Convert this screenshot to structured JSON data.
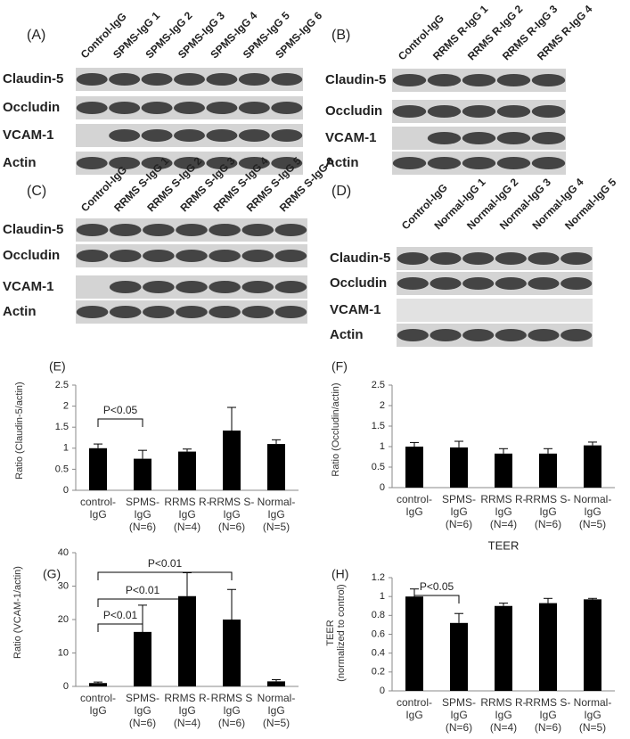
{
  "blots": [
    {
      "panel": "(A)",
      "lanes": [
        "Control-IgG",
        "SPMS-IgG 1",
        "SPMS-IgG 2",
        "SPMS-IgG 3",
        "SPMS-IgG 4",
        "SPMS-IgG 5",
        "SPMS-IgG 6"
      ],
      "rows": [
        "Claudin-5",
        "Occludin",
        "VCAM-1",
        "Actin"
      ]
    },
    {
      "panel": "(B)",
      "lanes": [
        "Control-IgG",
        "RRMS R-IgG 1",
        "RRMS R-IgG 2",
        "RRMS R-IgG 3",
        "RRMS R-IgG 4"
      ],
      "rows": [
        "Claudin-5",
        "Occludin",
        "VCAM-1",
        "Actin"
      ]
    },
    {
      "panel": "(C)",
      "lanes": [
        "Control-IgG",
        "RRMS S-IgG 1",
        "RRMS S-IgG 2",
        "RRMS S-IgG 3",
        "RRMS S-IgG 4",
        "RRMS S-IgG 5",
        "RRMS S-IgG 6"
      ],
      "rows": [
        "Claudin-5",
        "Occludin",
        "VCAM-1",
        "Actin"
      ]
    },
    {
      "panel": "(D)",
      "lanes": [
        "Control-IgG",
        "Normal-IgG 1",
        "Normal-IgG 2",
        "Normal-IgG 3",
        "Normal-IgG 4",
        "Normal-IgG 5"
      ],
      "rows": [
        "Claudin-5",
        "Occludin",
        "VCAM-1",
        "Actin"
      ]
    }
  ],
  "chart_data": [
    {
      "type": "bar",
      "panel": "(E)",
      "y_label": "Ratio (Claudin-5/actin)",
      "categories": [
        "control-\nIgG",
        "SPMS-\nIgG\n(N=6)",
        "RRMS R-\nIgG\n(N=4)",
        "RRMS S-\nIgG\n(N=6)",
        "Normal-\nIgG\n(N=5)"
      ],
      "values": [
        1.0,
        0.75,
        0.92,
        1.42,
        1.1
      ],
      "errors": [
        0.1,
        0.2,
        0.06,
        0.55,
        0.1
      ],
      "color": "#000000",
      "ylim": [
        0,
        2.5
      ],
      "yticks": [
        0,
        0.5,
        1,
        1.5,
        2,
        2.5
      ],
      "annotations": [
        "P<0.05"
      ]
    },
    {
      "type": "bar",
      "panel": "(F)",
      "y_label": "Ratio (Occludin/actin)",
      "categories": [
        "control-\nIgG",
        "SPMS-\nIgG\n(N=6)",
        "RRMS R-\nIgG\n(N=4)",
        "RRMS S-\nIgG\n(N=6)",
        "Normal-\nIgG\n(N=5)"
      ],
      "values": [
        1.0,
        0.98,
        0.83,
        0.83,
        1.03
      ],
      "errors": [
        0.1,
        0.15,
        0.12,
        0.12,
        0.08
      ],
      "color": "#000000",
      "ylim": [
        0,
        2.5
      ],
      "yticks": [
        0,
        0.5,
        1,
        1.5,
        2,
        2.5
      ],
      "annotations": []
    },
    {
      "type": "bar",
      "panel": "(G)",
      "y_label": "Ratio (VCAM-1/actin)",
      "categories": [
        "control-\nIgG",
        "SPMS-\nIgG\n(N=6)",
        "RRMS R-\nIgG\n(N=4)",
        "RRMS S\nIgG\n(N=6)",
        "Normal-\nIgG\n(N=5)"
      ],
      "values": [
        1,
        16.3,
        27,
        20,
        1.5
      ],
      "errors": [
        0.3,
        8,
        7,
        9,
        0.5
      ],
      "color": "#000000",
      "ylim": [
        0,
        40
      ],
      "yticks": [
        0,
        10,
        20,
        30,
        40
      ],
      "annotations": [
        "P<0.01",
        "P<0.01",
        "P<0.01"
      ]
    },
    {
      "type": "bar",
      "panel": "(H)",
      "title": "TEER",
      "y_label": "TEER\n(normalized to control)",
      "categories": [
        "control-\nIgG",
        "SPMS-\nIgG\n(N=6)",
        "RRMS R-\nIgG\n(N=4)",
        "RRMS S-\nIgG\n(N=6)",
        "Normal-\nIgG\n(N=5)"
      ],
      "values": [
        1.0,
        0.72,
        0.9,
        0.93,
        0.97
      ],
      "errors": [
        0.08,
        0.1,
        0.03,
        0.05,
        0.01
      ],
      "color": "#000000",
      "ylim": [
        0,
        1.2
      ],
      "yticks": [
        0,
        0.2,
        0.4,
        0.6,
        0.8,
        1,
        1.2
      ],
      "annotations": [
        "P<0.05"
      ]
    }
  ]
}
